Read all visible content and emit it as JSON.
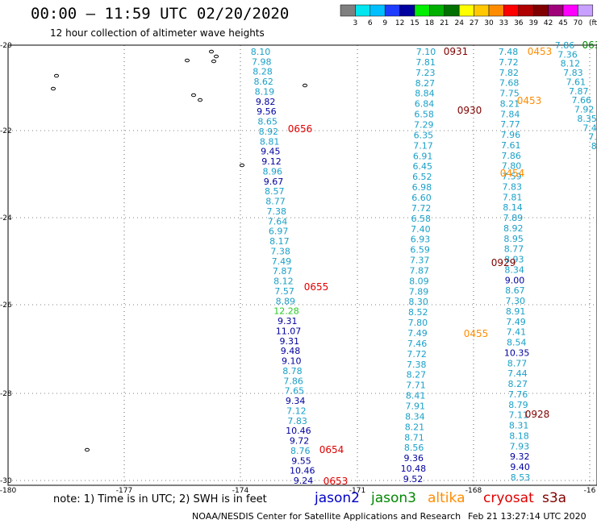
{
  "title": "00:00 – 11:59 UTC 02/20/2020",
  "subtitle": "12 hour collection of altimeter wave heights",
  "colorbar": {
    "colors": [
      "#7f7f7f",
      "#00e5ee",
      "#00bfff",
      "#1e3cff",
      "#0000a0",
      "#00ee00",
      "#00b000",
      "#007000",
      "#ffff00",
      "#ffc800",
      "#ff8c00",
      "#ff0000",
      "#b00000",
      "#800000",
      "#a0007a",
      "#ff00ff",
      "#c8a0ff",
      "#ffffff"
    ],
    "labels": [
      "3",
      "6",
      "9",
      "12",
      "15",
      "18",
      "21",
      "24",
      "27",
      "30",
      "33",
      "36",
      "39",
      "42",
      "45",
      "70",
      "(ft)"
    ]
  },
  "axes": {
    "lon_labels": [
      "-180",
      "-177",
      "-174",
      "-171",
      "-168",
      "-16"
    ],
    "lat_labels": [
      "-20",
      "-22",
      "-24",
      "-26",
      "-28",
      "-30"
    ]
  },
  "tracks": [
    {
      "color": "#1aa0c8",
      "x": [
        320,
        322,
        324,
        325,
        326,
        327,
        328,
        329,
        331,
        332,
        333,
        334,
        336,
        337,
        338,
        340,
        341,
        342,
        343,
        344,
        346,
        348,
        349,
        351,
        353,
        355,
        357,
        358,
        360,
        362,
        364,
        366,
        368,
        370,
        372,
        374,
        376,
        378
      ],
      "values": [
        "8.10",
        "7.98",
        "8.28",
        "8.62",
        "8.19",
        "9.82",
        "9.56",
        "8.65",
        "8.92",
        "8.81",
        "9.45",
        "9.12",
        "8.96",
        "9.67",
        "8.57",
        "8.77",
        "7.38",
        "7.64",
        "6.97",
        "8.17",
        "7.38",
        "7.49",
        "7.87",
        "8.12",
        "7.57",
        "8.89",
        "12.28",
        "9.31",
        "11.07",
        "9.31",
        "9.48",
        "9.10",
        "8.78",
        "7.86",
        "7.65",
        "9.34",
        "7.12",
        "7.83"
      ]
    }
  ],
  "values_track1": [
    {
      "v": "8.10",
      "c": "#1aa0c8"
    },
    {
      "v": "7.98",
      "c": "#1aa0c8"
    },
    {
      "v": "8.28",
      "c": "#1aa0c8"
    },
    {
      "v": "8.62",
      "c": "#1aa0c8"
    },
    {
      "v": "8.19",
      "c": "#1aa0c8"
    },
    {
      "v": "9.82",
      "c": "#0000a0"
    },
    {
      "v": "9.56",
      "c": "#0000a0"
    },
    {
      "v": "8.65",
      "c": "#1aa0c8"
    },
    {
      "v": "8.92",
      "c": "#1aa0c8"
    },
    {
      "v": "8.81",
      "c": "#1aa0c8"
    },
    {
      "v": "9.45",
      "c": "#0000a0"
    },
    {
      "v": "9.12",
      "c": "#0000a0"
    },
    {
      "v": "8.96",
      "c": "#1aa0c8"
    },
    {
      "v": "9.67",
      "c": "#0000a0"
    },
    {
      "v": "8.57",
      "c": "#1aa0c8"
    },
    {
      "v": "8.77",
      "c": "#1aa0c8"
    },
    {
      "v": "7.38",
      "c": "#1aa0c8"
    },
    {
      "v": "7.64",
      "c": "#1aa0c8"
    },
    {
      "v": "6.97",
      "c": "#1aa0c8"
    },
    {
      "v": "8.17",
      "c": "#1aa0c8"
    },
    {
      "v": "7.38",
      "c": "#1aa0c8"
    },
    {
      "v": "7.49",
      "c": "#1aa0c8"
    },
    {
      "v": "7.87",
      "c": "#1aa0c8"
    },
    {
      "v": "8.12",
      "c": "#1aa0c8"
    },
    {
      "v": "7.57",
      "c": "#1aa0c8"
    },
    {
      "v": "8.89",
      "c": "#1aa0c8"
    },
    {
      "v": "12.28",
      "c": "#22cc22"
    },
    {
      "v": "9.31",
      "c": "#0000a0"
    },
    {
      "v": "11.07",
      "c": "#0000a0"
    },
    {
      "v": "9.31",
      "c": "#0000a0"
    },
    {
      "v": "9.48",
      "c": "#0000a0"
    },
    {
      "v": "9.10",
      "c": "#0000a0"
    },
    {
      "v": "8.78",
      "c": "#1aa0c8"
    },
    {
      "v": "7.86",
      "c": "#1aa0c8"
    },
    {
      "v": "7.65",
      "c": "#1aa0c8"
    },
    {
      "v": "9.34",
      "c": "#0000a0"
    },
    {
      "v": "7.12",
      "c": "#1aa0c8"
    },
    {
      "v": "7.83",
      "c": "#1aa0c8"
    },
    {
      "v": "10.46",
      "c": "#0000a0"
    },
    {
      "v": "9.72",
      "c": "#0000a0"
    },
    {
      "v": "8.76",
      "c": "#1aa0c8"
    },
    {
      "v": "9.55",
      "c": "#0000a0"
    },
    {
      "v": "10.46",
      "c": "#0000a0"
    },
    {
      "v": "9.24",
      "c": "#0000a0"
    }
  ],
  "values_track2": [
    {
      "v": "7.10",
      "c": "#1aa0c8"
    },
    {
      "v": "7.81",
      "c": "#1aa0c8"
    },
    {
      "v": "7.23",
      "c": "#1aa0c8"
    },
    {
      "v": "8.27",
      "c": "#1aa0c8"
    },
    {
      "v": "8.84",
      "c": "#1aa0c8"
    },
    {
      "v": "6.84",
      "c": "#1aa0c8"
    },
    {
      "v": "6.58",
      "c": "#1aa0c8"
    },
    {
      "v": "7.29",
      "c": "#1aa0c8"
    },
    {
      "v": "6.35",
      "c": "#1aa0c8"
    },
    {
      "v": "7.17",
      "c": "#1aa0c8"
    },
    {
      "v": "6.91",
      "c": "#1aa0c8"
    },
    {
      "v": "6.45",
      "c": "#1aa0c8"
    },
    {
      "v": "6.52",
      "c": "#1aa0c8"
    },
    {
      "v": "6.98",
      "c": "#1aa0c8"
    },
    {
      "v": "6.60",
      "c": "#1aa0c8"
    },
    {
      "v": "7.72",
      "c": "#1aa0c8"
    },
    {
      "v": "6.58",
      "c": "#1aa0c8"
    },
    {
      "v": "7.40",
      "c": "#1aa0c8"
    },
    {
      "v": "6.93",
      "c": "#1aa0c8"
    },
    {
      "v": "6.59",
      "c": "#1aa0c8"
    },
    {
      "v": "7.37",
      "c": "#1aa0c8"
    },
    {
      "v": "7.87",
      "c": "#1aa0c8"
    },
    {
      "v": "8.09",
      "c": "#1aa0c8"
    },
    {
      "v": "7.89",
      "c": "#1aa0c8"
    },
    {
      "v": "8.30",
      "c": "#1aa0c8"
    },
    {
      "v": "8.52",
      "c": "#1aa0c8"
    },
    {
      "v": "7.80",
      "c": "#1aa0c8"
    },
    {
      "v": "7.49",
      "c": "#1aa0c8"
    },
    {
      "v": "7.46",
      "c": "#1aa0c8"
    },
    {
      "v": "7.72",
      "c": "#1aa0c8"
    },
    {
      "v": "7.38",
      "c": "#1aa0c8"
    },
    {
      "v": "8.27",
      "c": "#1aa0c8"
    },
    {
      "v": "7.71",
      "c": "#1aa0c8"
    },
    {
      "v": "8.41",
      "c": "#1aa0c8"
    },
    {
      "v": "7.91",
      "c": "#1aa0c8"
    },
    {
      "v": "8.34",
      "c": "#1aa0c8"
    },
    {
      "v": "8.21",
      "c": "#1aa0c8"
    },
    {
      "v": "8.71",
      "c": "#1aa0c8"
    },
    {
      "v": "8.56",
      "c": "#1aa0c8"
    },
    {
      "v": "9.36",
      "c": "#0000a0"
    },
    {
      "v": "10.48",
      "c": "#0000a0"
    },
    {
      "v": "9.52",
      "c": "#0000a0"
    }
  ],
  "values_track3": [
    {
      "v": "7.48",
      "c": "#1aa0c8"
    },
    {
      "v": "7.72",
      "c": "#1aa0c8"
    },
    {
      "v": "7.82",
      "c": "#1aa0c8"
    },
    {
      "v": "7.68",
      "c": "#1aa0c8"
    },
    {
      "v": "7.75",
      "c": "#1aa0c8"
    },
    {
      "v": "8.21",
      "c": "#1aa0c8"
    },
    {
      "v": "7.84",
      "c": "#1aa0c8"
    },
    {
      "v": "7.77",
      "c": "#1aa0c8"
    },
    {
      "v": "7.96",
      "c": "#1aa0c8"
    },
    {
      "v": "7.61",
      "c": "#1aa0c8"
    },
    {
      "v": "7.86",
      "c": "#1aa0c8"
    },
    {
      "v": "7.80",
      "c": "#1aa0c8"
    },
    {
      "v": "7.59",
      "c": "#1aa0c8"
    },
    {
      "v": "7.83",
      "c": "#1aa0c8"
    },
    {
      "v": "7.81",
      "c": "#1aa0c8"
    },
    {
      "v": "8.14",
      "c": "#1aa0c8"
    },
    {
      "v": "7.89",
      "c": "#1aa0c8"
    },
    {
      "v": "8.92",
      "c": "#1aa0c8"
    },
    {
      "v": "8.95",
      "c": "#1aa0c8"
    },
    {
      "v": "8.77",
      "c": "#1aa0c8"
    },
    {
      "v": "8.93",
      "c": "#1aa0c8"
    },
    {
      "v": "8.34",
      "c": "#1aa0c8"
    },
    {
      "v": "9.00",
      "c": "#0000a0"
    },
    {
      "v": "8.67",
      "c": "#1aa0c8"
    },
    {
      "v": "7.30",
      "c": "#1aa0c8"
    },
    {
      "v": "8.91",
      "c": "#1aa0c8"
    },
    {
      "v": "7.49",
      "c": "#1aa0c8"
    },
    {
      "v": "7.41",
      "c": "#1aa0c8"
    },
    {
      "v": "8.54",
      "c": "#1aa0c8"
    },
    {
      "v": "10.35",
      "c": "#0000a0"
    },
    {
      "v": "8.77",
      "c": "#1aa0c8"
    },
    {
      "v": "7.44",
      "c": "#1aa0c8"
    },
    {
      "v": "8.27",
      "c": "#1aa0c8"
    },
    {
      "v": "7.76",
      "c": "#1aa0c8"
    },
    {
      "v": "8.79",
      "c": "#1aa0c8"
    },
    {
      "v": "7.11",
      "c": "#1aa0c8"
    },
    {
      "v": "8.31",
      "c": "#1aa0c8"
    },
    {
      "v": "8.18",
      "c": "#1aa0c8"
    },
    {
      "v": "7.93",
      "c": "#1aa0c8"
    },
    {
      "v": "9.32",
      "c": "#0000a0"
    },
    {
      "v": "9.40",
      "c": "#0000a0"
    },
    {
      "v": "8.53",
      "c": "#1aa0c8"
    }
  ],
  "values_track4": [
    {
      "v": "7.86",
      "c": "#1aa0c8"
    },
    {
      "v": "7.36",
      "c": "#1aa0c8"
    },
    {
      "v": "8.12",
      "c": "#1aa0c8"
    },
    {
      "v": "7.83",
      "c": "#1aa0c8"
    },
    {
      "v": "7.61",
      "c": "#1aa0c8"
    },
    {
      "v": "7.87",
      "c": "#1aa0c8"
    },
    {
      "v": "7.66",
      "c": "#1aa0c8"
    },
    {
      "v": "7.92",
      "c": "#1aa0c8"
    },
    {
      "v": "8.35",
      "c": "#1aa0c8"
    },
    {
      "v": "7.4",
      "c": "#1aa0c8"
    },
    {
      "v": "7.",
      "c": "#1aa0c8"
    },
    {
      "v": "8.",
      "c": "#1aa0c8"
    }
  ],
  "times": [
    {
      "t": "0931",
      "c": "#800000"
    },
    {
      "t": "0453",
      "c": "#ff8c00"
    },
    {
      "t": "063",
      "c": "#008800"
    },
    {
      "t": "0930",
      "c": "#800000"
    },
    {
      "t": "0453",
      "c": "#ff8c00"
    },
    {
      "t": "0656",
      "c": "#e00000"
    },
    {
      "t": "0454",
      "c": "#ff8c00"
    },
    {
      "t": "0929",
      "c": "#800000"
    },
    {
      "t": "0655",
      "c": "#e00000"
    },
    {
      "t": "0455",
      "c": "#ff8c00"
    },
    {
      "t": "0928",
      "c": "#800000"
    },
    {
      "t": "0654",
      "c": "#e00000"
    },
    {
      "t": "0653",
      "c": "#e00000"
    }
  ],
  "note": "note:  1) Time is in UTC;  2) SWH is in feet",
  "missions": [
    {
      "name": "jason2",
      "color": "#0000c8"
    },
    {
      "name": "jason3",
      "color": "#008800"
    },
    {
      "name": "altika",
      "color": "#ff8c00"
    },
    {
      "name": "cryosat",
      "color": "#e00000"
    },
    {
      "name": "s3a",
      "color": "#800000"
    }
  ],
  "footer_left": "NOAA/NESDIS Center for Satellite Applications and Research",
  "footer_right": "Feb 21 13:27:14 UTC 2020"
}
